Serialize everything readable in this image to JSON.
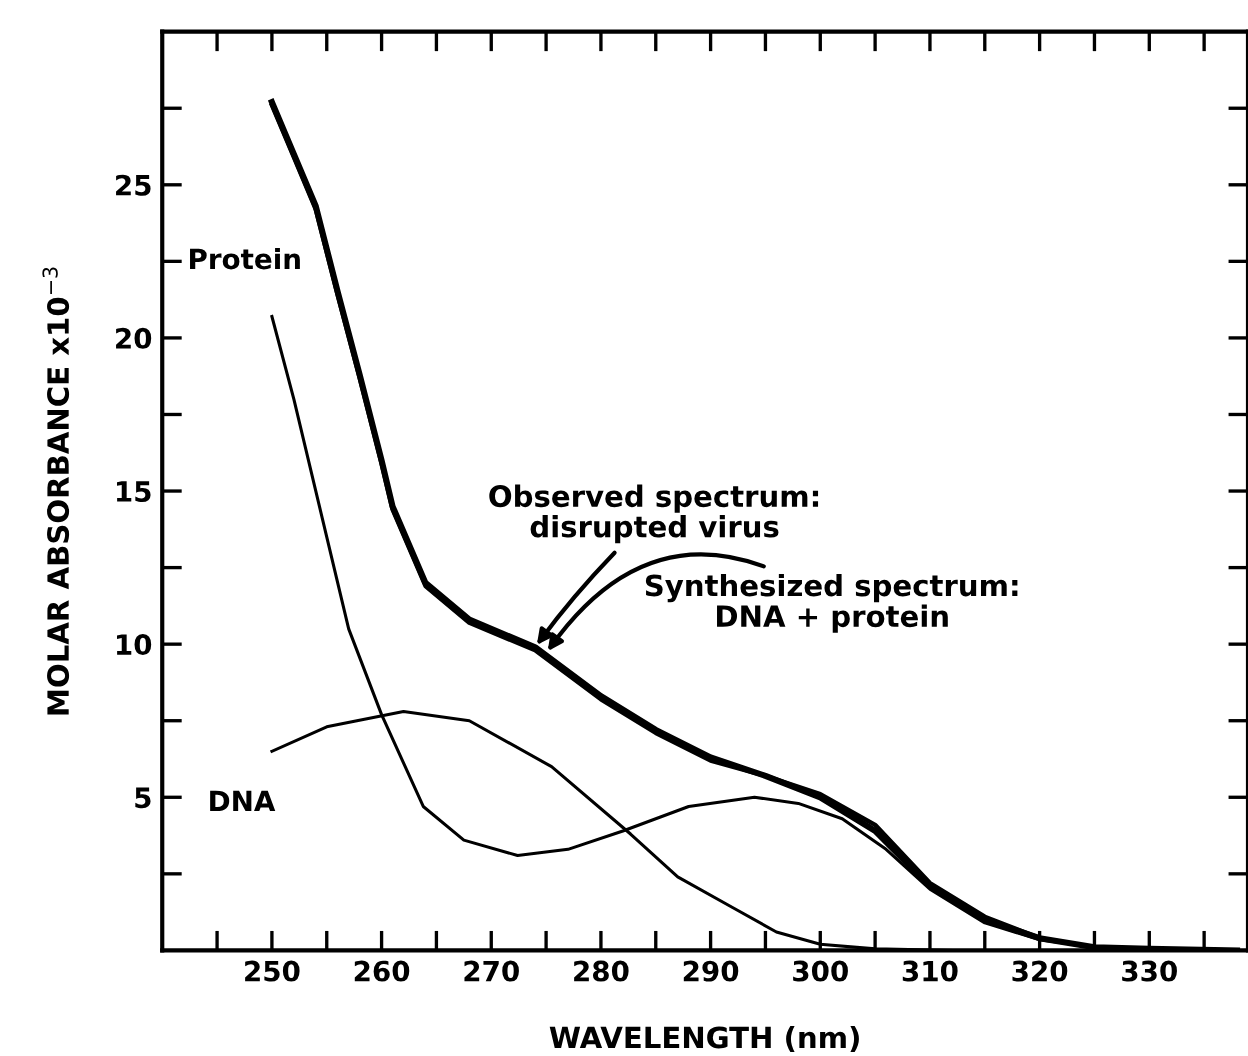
{
  "chart_data": {
    "type": "line",
    "xlabel": "WAVELENGTH (nm)",
    "ylabel": "MOLAR ABSORBANCE x10$^{−3}$",
    "xlim": [
      240,
      339
    ],
    "ylim": [
      0,
      30
    ],
    "xticks": [
      {
        "value": 245,
        "label": null
      },
      250,
      {
        "value": 255,
        "label": null
      },
      260,
      {
        "value": 265,
        "label": null
      },
      270,
      {
        "value": 275,
        "label": null
      },
      280,
      {
        "value": 285,
        "label": null
      },
      290,
      {
        "value": 295,
        "label": null
      },
      300,
      {
        "value": 305,
        "label": null
      },
      310,
      {
        "value": 315,
        "label": null
      },
      320,
      {
        "value": 325,
        "label": null
      },
      330,
      {
        "value": 335,
        "label": null
      }
    ],
    "yticks": [
      {
        "value": 2.5,
        "label": null
      },
      5,
      {
        "value": 7.5,
        "label": null
      },
      10,
      {
        "value": 12.5,
        "label": null
      },
      15,
      {
        "value": 17.5,
        "label": null
      },
      20,
      {
        "value": 22.5,
        "label": null
      },
      25,
      {
        "value": 27.5,
        "label": null
      }
    ],
    "grid": false,
    "legend": false,
    "marker": "none",
    "line_style": "solid",
    "annotations": [
      {
        "text": "Observed spectrum:\ndisrupted virus",
        "x": 274,
        "y": 9.9
      },
      {
        "text": "Synthesized spectrum:\nDNA + protein",
        "x": 275,
        "y": 9.7
      },
      "Protein",
      "DNA"
    ],
    "series": [
      {
        "color": "#000000",
        "x": [
          250,
          252,
          254,
          256,
          258,
          260,
          261,
          264,
          268,
          274,
          280,
          285,
          290,
          295,
          300,
          305,
          310,
          315,
          320,
          325,
          330,
          338
        ],
        "values": [
          27.7,
          26,
          24.3,
          21.5,
          18.8,
          16,
          14.5,
          12,
          10.8,
          9.9,
          8.3,
          7.2,
          6.3,
          5.7,
          5.0,
          3.9,
          2.1,
          1.0,
          0.4,
          0.1,
          0.05,
          0
        ]
      },
      {
        "color": "#000000",
        "x": [
          250,
          252,
          254,
          256,
          258,
          260,
          261,
          264,
          268,
          274,
          280,
          285,
          290,
          295,
          300,
          305,
          310,
          315,
          320,
          325,
          330,
          338
        ],
        "values": [
          27.6,
          25.9,
          24.2,
          21.4,
          18.7,
          15.9,
          14.4,
          11.9,
          10.7,
          9.8,
          8.2,
          7.1,
          6.2,
          5.7,
          5.1,
          4.1,
          2.2,
          1.1,
          0.4,
          0.1,
          0.05,
          0
        ]
      },
      {
        "color": "#000000",
        "x": [
          250,
          252,
          254.6,
          257,
          260,
          263.8,
          267.5,
          272.4,
          277,
          282,
          288,
          294,
          298,
          302,
          306,
          310,
          315,
          320,
          325,
          330,
          338
        ],
        "values": [
          20.7,
          18.0,
          14.1,
          10.5,
          7.7,
          4.7,
          3.6,
          3.1,
          3.3,
          3.9,
          4.7,
          5.0,
          4.8,
          4.3,
          3.3,
          2.0,
          0.9,
          0.35,
          0.1,
          0.03,
          0
        ]
      },
      {
        "color": "#000000",
        "x": [
          250,
          255,
          262,
          268,
          275.5,
          282.7,
          287,
          292,
          296,
          300,
          305,
          312
        ],
        "values": [
          6.5,
          7.3,
          7.8,
          7.5,
          6.0,
          3.8,
          2.4,
          1.4,
          0.6,
          0.2,
          0.05,
          0
        ]
      }
    ]
  }
}
